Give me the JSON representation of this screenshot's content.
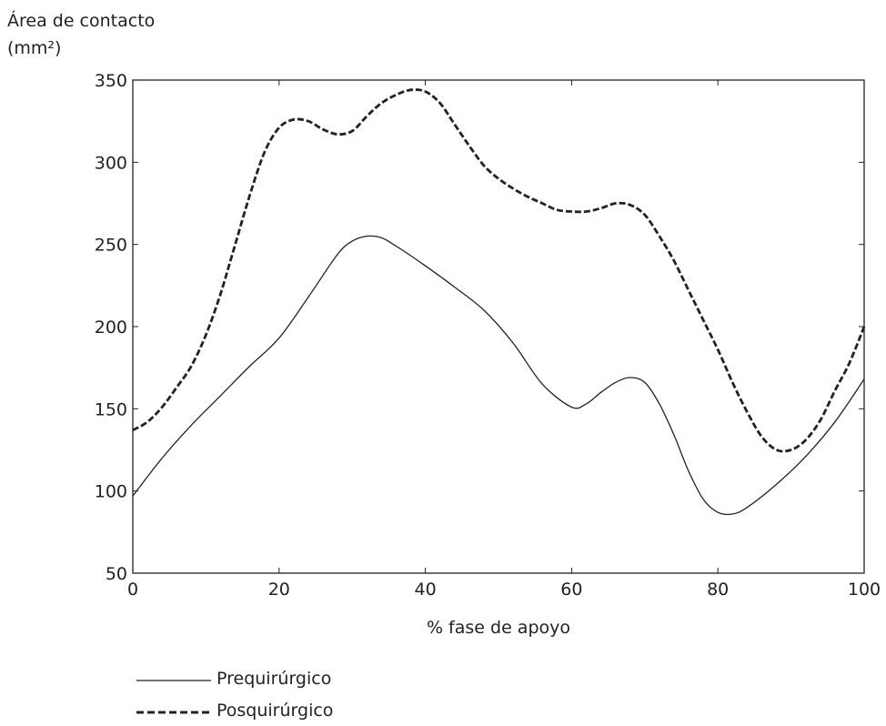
{
  "chart_data": {
    "type": "line",
    "ylabel_line1": "Área de contacto",
    "ylabel_line2": "(mm²)",
    "xlabel": "% fase de apoyo",
    "xlim": [
      0,
      100
    ],
    "ylim": [
      50,
      350
    ],
    "xticks": [
      0,
      20,
      40,
      60,
      80,
      100
    ],
    "yticks": [
      50,
      100,
      150,
      200,
      250,
      300,
      350
    ],
    "grid": false,
    "legend_position": "bottom-left",
    "series": [
      {
        "name": "Prequirúrgico",
        "style": "solid",
        "color": "#222222",
        "x": [
          0,
          4,
          8,
          12,
          16,
          20,
          24,
          28,
          30,
          32,
          34,
          36,
          40,
          44,
          48,
          52,
          56,
          60,
          62,
          64,
          66,
          68,
          70,
          72,
          74,
          76,
          78,
          80,
          82,
          84,
          88,
          92,
          96,
          100
        ],
        "y": [
          97,
          120,
          140,
          158,
          176,
          193,
          218,
          244,
          252,
          255,
          254,
          249,
          237,
          224,
          210,
          190,
          165,
          151,
          153,
          160,
          166,
          169,
          166,
          153,
          134,
          112,
          95,
          87,
          86,
          90,
          104,
          121,
          142,
          168
        ]
      },
      {
        "name": "Posquirúrgico",
        "style": "dashed",
        "color": "#222222",
        "x": [
          0,
          2,
          4,
          6,
          8,
          10,
          12,
          14,
          16,
          18,
          20,
          22,
          24,
          26,
          28,
          30,
          32,
          34,
          36,
          38,
          40,
          42,
          44,
          46,
          48,
          50,
          52,
          54,
          56,
          58,
          60,
          62,
          64,
          66,
          68,
          70,
          72,
          74,
          76,
          78,
          80,
          82,
          84,
          86,
          88,
          90,
          92,
          94,
          96,
          98,
          100
        ],
        "y": [
          137,
          142,
          151,
          163,
          176,
          195,
          220,
          250,
          280,
          306,
          321,
          326,
          325,
          320,
          317,
          319,
          328,
          336,
          341,
          344,
          343,
          336,
          323,
          310,
          298,
          290,
          284,
          279,
          275,
          271,
          270,
          270,
          272,
          275,
          274,
          268,
          255,
          240,
          222,
          204,
          186,
          166,
          148,
          133,
          125,
          125,
          131,
          143,
          161,
          178,
          200
        ]
      }
    ]
  }
}
